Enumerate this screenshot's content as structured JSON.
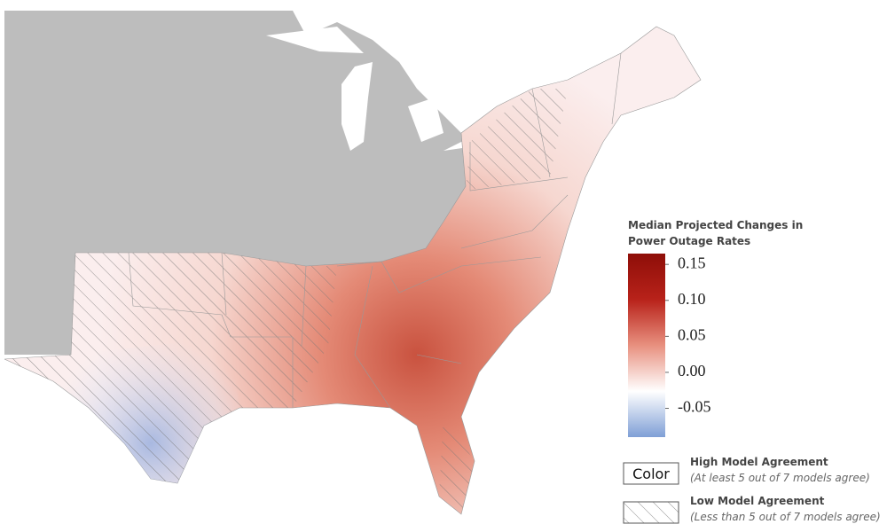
{
  "legend": {
    "title_lines": [
      "Median Projected Changes in",
      "Power Outage Rates"
    ],
    "colorbar": {
      "range": [
        -0.09,
        0.165
      ],
      "colors": [
        "#7f9fd6",
        "#ffffff",
        "#e8907f",
        "#b8221a",
        "#8e0e08"
      ],
      "ticks": [
        0.15,
        {
          "value": 0.1,
          "label": "0.10"
        },
        0.05,
        {
          "value": 0,
          "label": "0.00"
        },
        -0.05
      ]
    },
    "items": [
      {
        "swatch": "Color",
        "label": "High Model Agreement",
        "note": "(At least 5 out of 7 models  agree)"
      },
      {
        "label": "Low Model Agreement",
        "note": "(Less than 5 out of 7 models agree)"
      }
    ]
  }
}
